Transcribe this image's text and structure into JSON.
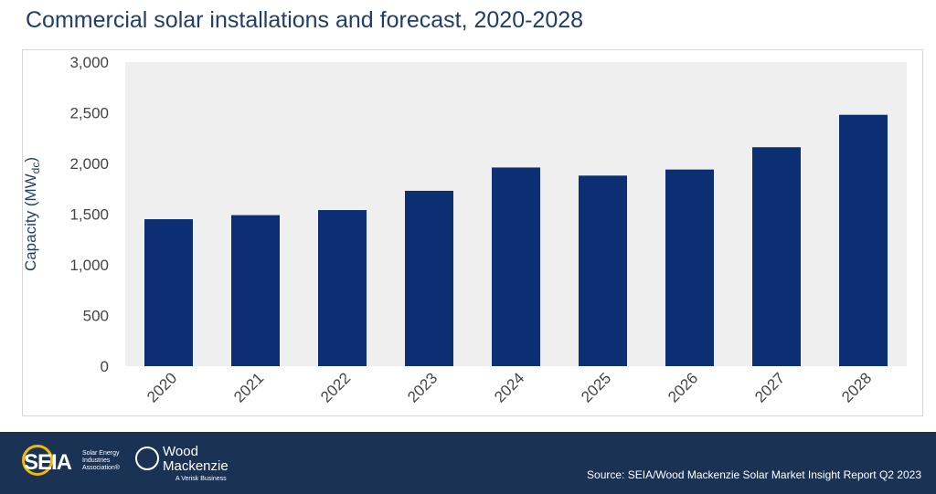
{
  "title": "Commercial solar installations and forecast, 2020-2028",
  "colors": {
    "bar": "#0b2f72",
    "plot_bg": "#efefef",
    "footer_bg": "#1a3355",
    "title": "#1f3f66",
    "seia_ring": "#f2b800"
  },
  "footer": {
    "source": "Source: SEIA/Wood Mackenzie Solar Market Insight Report Q2 2023",
    "seia_logo_text": "SEIA",
    "seia_logo_sub": "Solar Energy Industries Association®",
    "wm_logo_text": "Wood Mackenzie",
    "wm_logo_sub": "A Verisk Business"
  },
  "chart_data": {
    "type": "bar",
    "title": "Commercial solar installations and forecast, 2020-2028",
    "xlabel": "",
    "ylabel": "Capacity (MW",
    "ylabel_subscript": "dc",
    "ylabel_suffix": ")",
    "categories": [
      "2020",
      "2021",
      "2022",
      "2023",
      "2024",
      "2025",
      "2026",
      "2027",
      "2028"
    ],
    "values": [
      1450,
      1490,
      1540,
      1730,
      1960,
      1880,
      1940,
      2160,
      2480
    ],
    "ylim": [
      0,
      3000
    ],
    "yticks": [
      0,
      500,
      1000,
      1500,
      2000,
      2500,
      3000
    ],
    "ytick_labels": [
      "0",
      "500",
      "1,000",
      "1,500",
      "2,000",
      "2,500",
      "3,000"
    ],
    "grid": false,
    "legend": "none"
  }
}
